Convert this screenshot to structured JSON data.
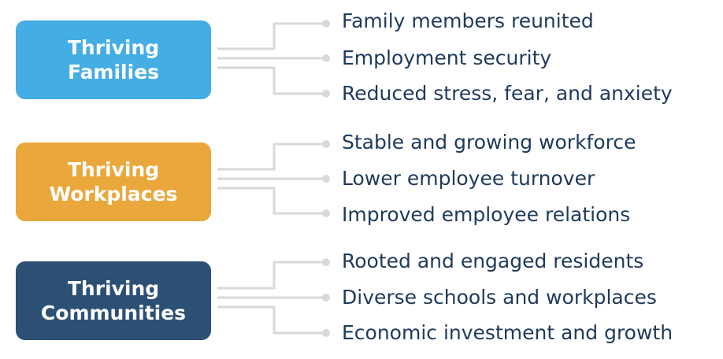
{
  "colors": {
    "families": "#43ade4",
    "workplaces": "#eaa83c",
    "communities": "#2c5074",
    "connector": "#d9d9d9",
    "item_text": "#1f3a5c"
  },
  "groups": [
    {
      "title_line1": "Thriving",
      "title_line2": "Families",
      "items": [
        "Family members reunited",
        "Employment security",
        "Reduced stress, fear, and anxiety"
      ]
    },
    {
      "title_line1": "Thriving",
      "title_line2": "Workplaces",
      "items": [
        "Stable and growing workforce",
        "Lower employee turnover",
        "Improved employee relations"
      ]
    },
    {
      "title_line1": "Thriving",
      "title_line2": "Communities",
      "items": [
        "Rooted and engaged residents",
        "Diverse schools and workplaces",
        "Economic investment and growth"
      ]
    }
  ]
}
